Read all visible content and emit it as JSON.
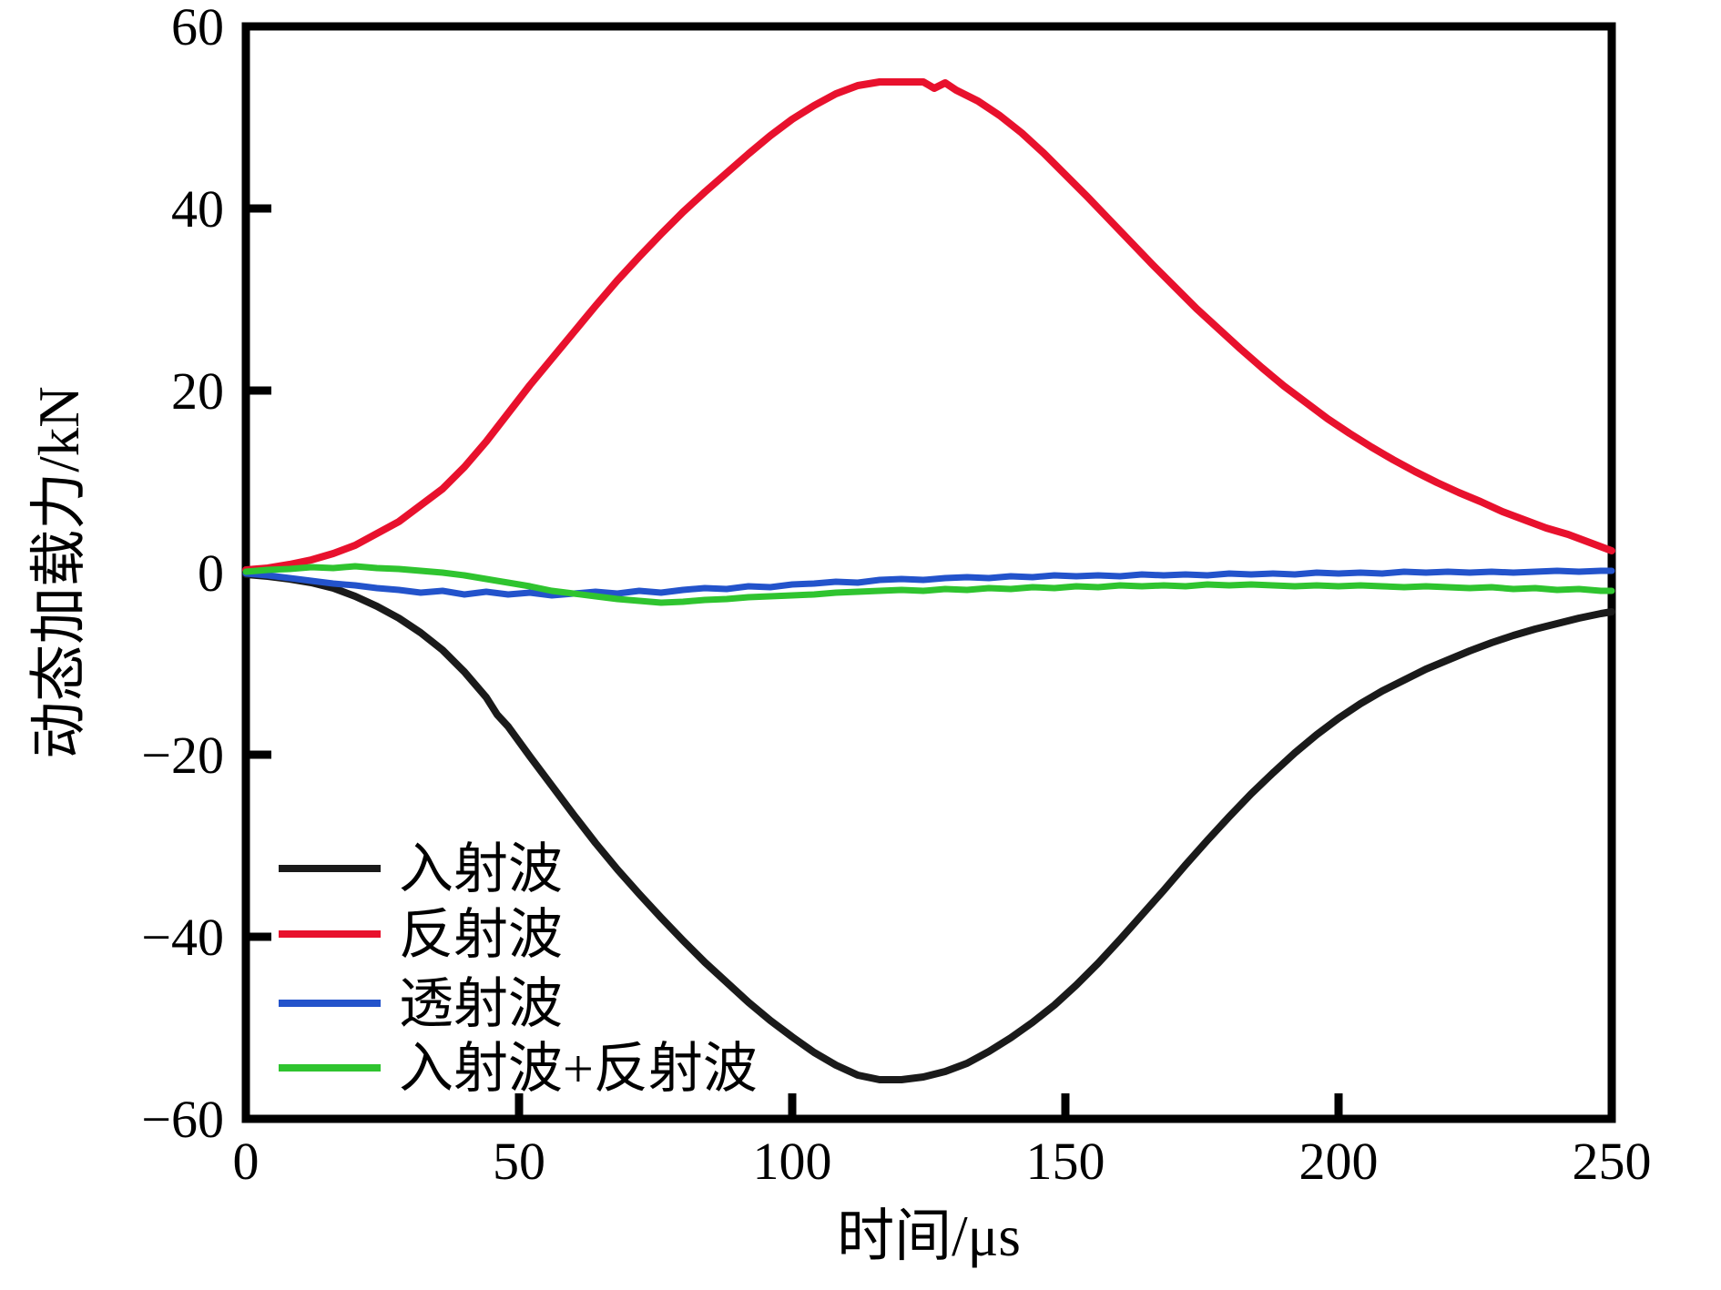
{
  "chart_data": {
    "type": "line",
    "title": "",
    "xlabel": "时间/μs",
    "ylabel": "动态加载力/kN",
    "xlim": [
      0,
      250
    ],
    "ylim": [
      -60,
      60
    ],
    "x_ticks": [
      0,
      50,
      100,
      150,
      200,
      250
    ],
    "y_ticks": [
      60,
      40,
      20,
      0,
      -20,
      -40,
      -60
    ],
    "grid": false,
    "legend_position": "lower-left",
    "frame_color": "#000000",
    "series": [
      {
        "name": "入射波",
        "color": "#1a1a1a",
        "points": [
          [
            0,
            -0.2
          ],
          [
            4,
            -0.4
          ],
          [
            8,
            -0.7
          ],
          [
            12,
            -1.1
          ],
          [
            16,
            -1.7
          ],
          [
            20,
            -2.6
          ],
          [
            24,
            -3.7
          ],
          [
            28,
            -5.0
          ],
          [
            32,
            -6.6
          ],
          [
            36,
            -8.5
          ],
          [
            40,
            -10.9
          ],
          [
            44,
            -13.7
          ],
          [
            46,
            -15.6
          ],
          [
            48,
            -16.9
          ],
          [
            52,
            -20.2
          ],
          [
            56,
            -23.4
          ],
          [
            60,
            -26.6
          ],
          [
            64,
            -29.7
          ],
          [
            68,
            -32.6
          ],
          [
            72,
            -35.3
          ],
          [
            76,
            -37.9
          ],
          [
            80,
            -40.4
          ],
          [
            84,
            -42.8
          ],
          [
            88,
            -45.0
          ],
          [
            92,
            -47.2
          ],
          [
            96,
            -49.2
          ],
          [
            100,
            -51.0
          ],
          [
            104,
            -52.7
          ],
          [
            108,
            -54.1
          ],
          [
            112,
            -55.2
          ],
          [
            116,
            -55.7
          ],
          [
            120,
            -55.7
          ],
          [
            124,
            -55.4
          ],
          [
            128,
            -54.8
          ],
          [
            132,
            -53.9
          ],
          [
            136,
            -52.6
          ],
          [
            140,
            -51.1
          ],
          [
            144,
            -49.4
          ],
          [
            148,
            -47.5
          ],
          [
            152,
            -45.3
          ],
          [
            156,
            -42.9
          ],
          [
            160,
            -40.3
          ],
          [
            164,
            -37.6
          ],
          [
            168,
            -34.9
          ],
          [
            172,
            -32.1
          ],
          [
            176,
            -29.4
          ],
          [
            180,
            -26.8
          ],
          [
            184,
            -24.3
          ],
          [
            188,
            -22.0
          ],
          [
            192,
            -19.8
          ],
          [
            196,
            -17.8
          ],
          [
            200,
            -16.0
          ],
          [
            204,
            -14.4
          ],
          [
            208,
            -13.0
          ],
          [
            212,
            -11.8
          ],
          [
            216,
            -10.6
          ],
          [
            220,
            -9.6
          ],
          [
            224,
            -8.6
          ],
          [
            228,
            -7.7
          ],
          [
            232,
            -6.9
          ],
          [
            236,
            -6.2
          ],
          [
            240,
            -5.6
          ],
          [
            244,
            -5.0
          ],
          [
            248,
            -4.5
          ],
          [
            250,
            -4.3
          ]
        ]
      },
      {
        "name": "反射波",
        "color": "#e8112d",
        "points": [
          [
            0,
            0.3
          ],
          [
            4,
            0.5
          ],
          [
            8,
            0.9
          ],
          [
            12,
            1.4
          ],
          [
            16,
            2.1
          ],
          [
            20,
            3.0
          ],
          [
            24,
            4.3
          ],
          [
            28,
            5.6
          ],
          [
            32,
            7.4
          ],
          [
            36,
            9.2
          ],
          [
            40,
            11.6
          ],
          [
            44,
            14.4
          ],
          [
            48,
            17.5
          ],
          [
            52,
            20.6
          ],
          [
            56,
            23.5
          ],
          [
            60,
            26.4
          ],
          [
            64,
            29.3
          ],
          [
            68,
            32.1
          ],
          [
            72,
            34.7
          ],
          [
            76,
            37.2
          ],
          [
            80,
            39.6
          ],
          [
            84,
            41.8
          ],
          [
            88,
            43.9
          ],
          [
            92,
            46.0
          ],
          [
            96,
            48.0
          ],
          [
            100,
            49.8
          ],
          [
            104,
            51.3
          ],
          [
            108,
            52.6
          ],
          [
            112,
            53.5
          ],
          [
            116,
            53.9
          ],
          [
            120,
            53.9
          ],
          [
            124,
            53.9
          ],
          [
            126,
            53.2
          ],
          [
            128,
            53.8
          ],
          [
            130,
            53.0
          ],
          [
            134,
            51.8
          ],
          [
            138,
            50.2
          ],
          [
            142,
            48.3
          ],
          [
            146,
            46.1
          ],
          [
            150,
            43.7
          ],
          [
            154,
            41.3
          ],
          [
            158,
            38.8
          ],
          [
            162,
            36.3
          ],
          [
            166,
            33.8
          ],
          [
            170,
            31.4
          ],
          [
            174,
            29.0
          ],
          [
            178,
            26.8
          ],
          [
            182,
            24.6
          ],
          [
            186,
            22.5
          ],
          [
            190,
            20.5
          ],
          [
            194,
            18.7
          ],
          [
            198,
            16.9
          ],
          [
            202,
            15.3
          ],
          [
            206,
            13.8
          ],
          [
            210,
            12.4
          ],
          [
            214,
            11.1
          ],
          [
            218,
            9.9
          ],
          [
            222,
            8.8
          ],
          [
            226,
            7.8
          ],
          [
            230,
            6.7
          ],
          [
            234,
            5.8
          ],
          [
            238,
            4.9
          ],
          [
            242,
            4.2
          ],
          [
            246,
            3.3
          ],
          [
            250,
            2.4
          ]
        ]
      },
      {
        "name": "透射波",
        "color": "#2353cb",
        "points": [
          [
            0,
            -0.1
          ],
          [
            4,
            -0.3
          ],
          [
            8,
            -0.6
          ],
          [
            12,
            -0.9
          ],
          [
            16,
            -1.2
          ],
          [
            20,
            -1.4
          ],
          [
            24,
            -1.7
          ],
          [
            28,
            -1.9
          ],
          [
            32,
            -2.2
          ],
          [
            36,
            -2.0
          ],
          [
            40,
            -2.4
          ],
          [
            44,
            -2.1
          ],
          [
            48,
            -2.4
          ],
          [
            52,
            -2.2
          ],
          [
            56,
            -2.5
          ],
          [
            60,
            -2.3
          ],
          [
            64,
            -2.1
          ],
          [
            68,
            -2.3
          ],
          [
            72,
            -2.0
          ],
          [
            76,
            -2.2
          ],
          [
            80,
            -1.9
          ],
          [
            84,
            -1.7
          ],
          [
            88,
            -1.8
          ],
          [
            92,
            -1.5
          ],
          [
            96,
            -1.6
          ],
          [
            100,
            -1.3
          ],
          [
            104,
            -1.2
          ],
          [
            108,
            -1.0
          ],
          [
            112,
            -1.1
          ],
          [
            116,
            -0.8
          ],
          [
            120,
            -0.7
          ],
          [
            124,
            -0.8
          ],
          [
            128,
            -0.6
          ],
          [
            132,
            -0.5
          ],
          [
            136,
            -0.6
          ],
          [
            140,
            -0.4
          ],
          [
            144,
            -0.5
          ],
          [
            148,
            -0.3
          ],
          [
            152,
            -0.4
          ],
          [
            156,
            -0.3
          ],
          [
            160,
            -0.4
          ],
          [
            164,
            -0.2
          ],
          [
            168,
            -0.3
          ],
          [
            172,
            -0.2
          ],
          [
            176,
            -0.3
          ],
          [
            180,
            -0.1
          ],
          [
            184,
            -0.2
          ],
          [
            188,
            -0.1
          ],
          [
            192,
            -0.2
          ],
          [
            196,
            0.0
          ],
          [
            200,
            -0.1
          ],
          [
            204,
            0.0
          ],
          [
            208,
            -0.1
          ],
          [
            212,
            0.1
          ],
          [
            216,
            0.0
          ],
          [
            220,
            0.1
          ],
          [
            224,
            0.0
          ],
          [
            228,
            0.1
          ],
          [
            232,
            0.0
          ],
          [
            236,
            0.1
          ],
          [
            240,
            0.2
          ],
          [
            244,
            0.1
          ],
          [
            248,
            0.2
          ],
          [
            250,
            0.2
          ]
        ]
      },
      {
        "name": "入射波+反射波",
        "color": "#2fc42f",
        "points": [
          [
            0,
            0.1
          ],
          [
            4,
            0.3
          ],
          [
            8,
            0.4
          ],
          [
            12,
            0.6
          ],
          [
            16,
            0.5
          ],
          [
            20,
            0.7
          ],
          [
            24,
            0.5
          ],
          [
            28,
            0.4
          ],
          [
            32,
            0.2
          ],
          [
            36,
            0.0
          ],
          [
            40,
            -0.3
          ],
          [
            44,
            -0.7
          ],
          [
            48,
            -1.1
          ],
          [
            52,
            -1.5
          ],
          [
            56,
            -2.0
          ],
          [
            60,
            -2.3
          ],
          [
            64,
            -2.6
          ],
          [
            68,
            -2.9
          ],
          [
            72,
            -3.1
          ],
          [
            76,
            -3.3
          ],
          [
            80,
            -3.2
          ],
          [
            84,
            -3.0
          ],
          [
            88,
            -2.9
          ],
          [
            92,
            -2.7
          ],
          [
            96,
            -2.6
          ],
          [
            100,
            -2.5
          ],
          [
            104,
            -2.4
          ],
          [
            108,
            -2.2
          ],
          [
            112,
            -2.1
          ],
          [
            116,
            -2.0
          ],
          [
            120,
            -1.9
          ],
          [
            124,
            -2.0
          ],
          [
            128,
            -1.8
          ],
          [
            132,
            -1.9
          ],
          [
            136,
            -1.7
          ],
          [
            140,
            -1.8
          ],
          [
            144,
            -1.6
          ],
          [
            148,
            -1.7
          ],
          [
            152,
            -1.5
          ],
          [
            156,
            -1.6
          ],
          [
            160,
            -1.4
          ],
          [
            164,
            -1.5
          ],
          [
            168,
            -1.4
          ],
          [
            172,
            -1.5
          ],
          [
            176,
            -1.3
          ],
          [
            180,
            -1.4
          ],
          [
            184,
            -1.3
          ],
          [
            188,
            -1.4
          ],
          [
            192,
            -1.5
          ],
          [
            196,
            -1.4
          ],
          [
            200,
            -1.5
          ],
          [
            204,
            -1.4
          ],
          [
            208,
            -1.5
          ],
          [
            212,
            -1.6
          ],
          [
            216,
            -1.5
          ],
          [
            220,
            -1.6
          ],
          [
            224,
            -1.7
          ],
          [
            228,
            -1.6
          ],
          [
            232,
            -1.8
          ],
          [
            236,
            -1.7
          ],
          [
            240,
            -1.9
          ],
          [
            244,
            -1.8
          ],
          [
            248,
            -2.0
          ],
          [
            250,
            -2.0
          ]
        ]
      }
    ]
  }
}
